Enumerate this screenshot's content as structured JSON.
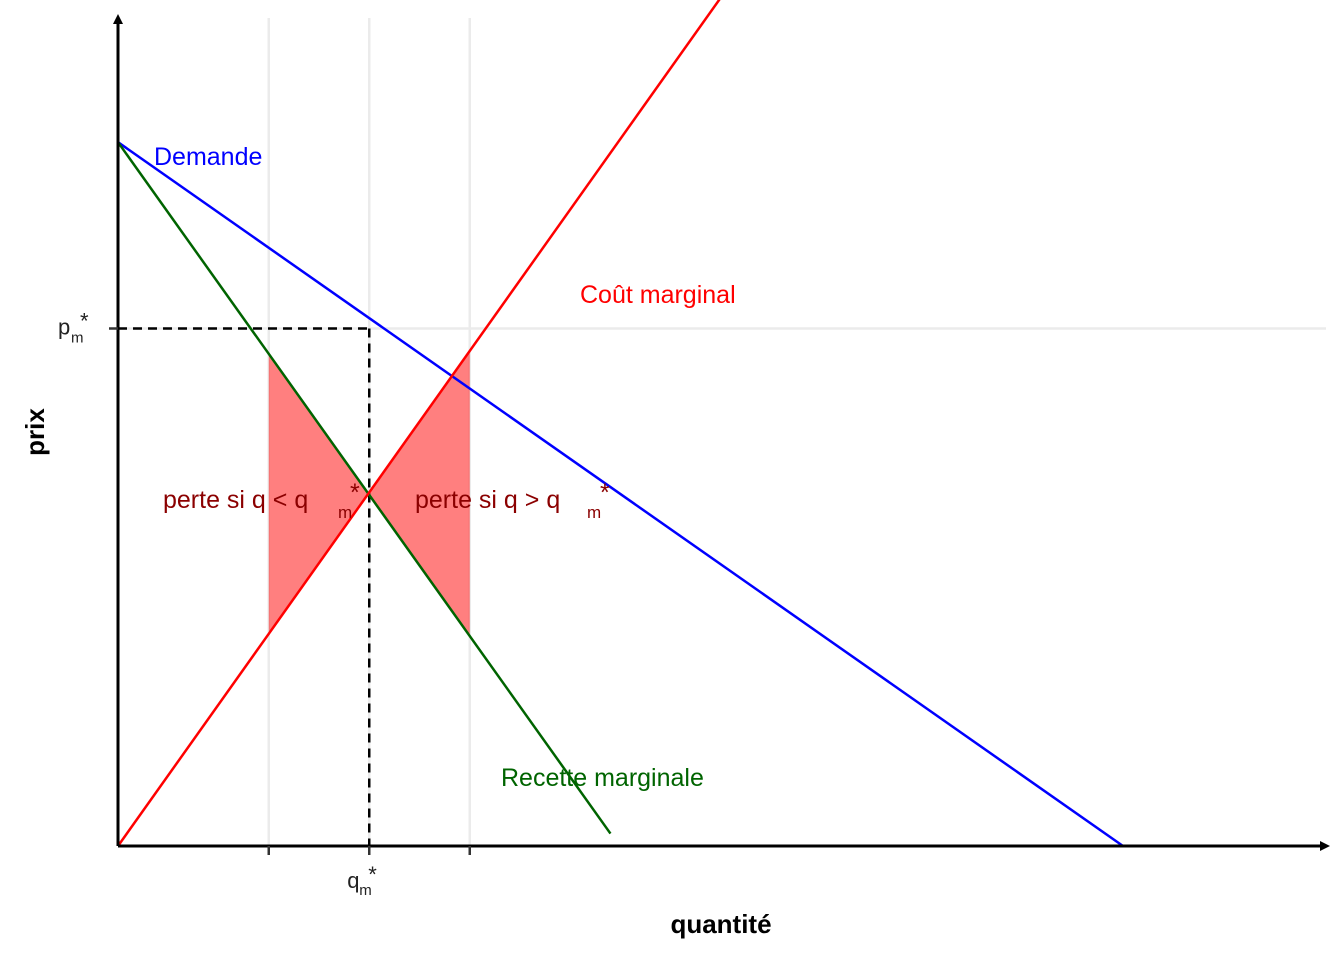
{
  "chart_data": {
    "type": "line",
    "xlabel": "quantité",
    "ylabel": "prix",
    "xlim": [
      0,
      12
    ],
    "ylim": [
      0,
      8.2
    ],
    "grid_x": [
      1.5,
      2.5,
      3.5
    ],
    "grid_y": [
      5
    ],
    "series": [
      {
        "name": "Demande",
        "color": "#0000ff",
        "x": [
          0,
          10
        ],
        "y": [
          6.8,
          0
        ]
      },
      {
        "name": "Recette marginale",
        "color": "#006400",
        "x": [
          0,
          4.9
        ],
        "y": [
          6.8,
          0.12
        ]
      },
      {
        "name": "Coût marginal",
        "color": "#ff0000",
        "x": [
          0,
          6
        ],
        "y": [
          0,
          8.2
        ]
      }
    ],
    "equilibrium": {
      "q": 2.5,
      "p_rm": 3.4,
      "p_demand": 5
    },
    "loss_areas": [
      {
        "x": [
          1.5,
          2.5
        ],
        "label": "perte si q < q",
        "sub": "m",
        "sup": "*"
      },
      {
        "x": [
          2.5,
          3.5
        ],
        "label": "perte si q > q",
        "sub": "m",
        "sup": "*"
      }
    ],
    "loss_color": "#ff0000",
    "ticks": {
      "x": [
        {
          "value": 2.5,
          "main": "q",
          "sub": "m",
          "sup": "*"
        }
      ],
      "y": [
        {
          "value": 5,
          "main": "p",
          "sub": "m",
          "sup": "*"
        }
      ]
    }
  }
}
